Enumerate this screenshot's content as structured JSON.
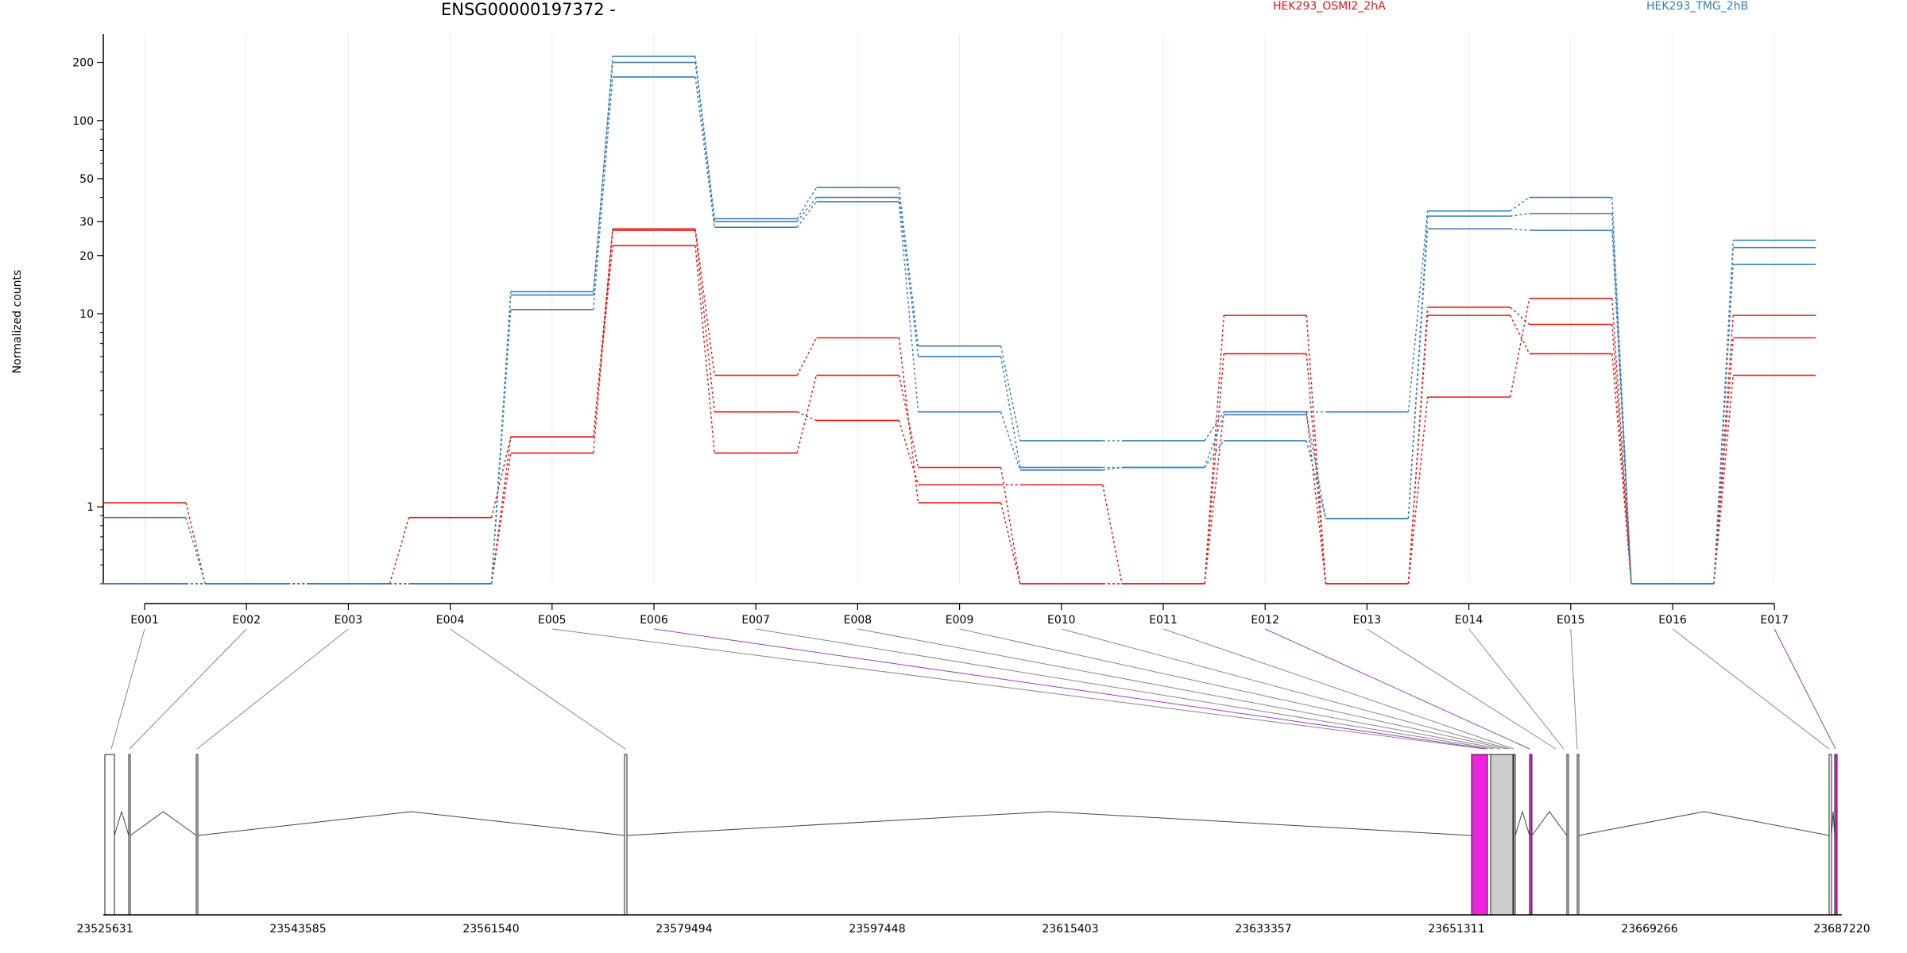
{
  "chart_data": {
    "type": "line",
    "title": "ENSG00000197372 -",
    "ylabel": "Normalized counts",
    "xlabel": "",
    "y_scale": "log",
    "ylim": [
      0.4,
      280
    ],
    "y_ticks": [
      1,
      10,
      20,
      30,
      50,
      100,
      200
    ],
    "categories": [
      "E001",
      "E002",
      "E003",
      "E004",
      "E005",
      "E006",
      "E007",
      "E008",
      "E009",
      "E010",
      "E011",
      "E012",
      "E013",
      "E014",
      "E015",
      "E016",
      "E017"
    ],
    "legend": [
      {
        "name": "HEK293_OSMI2_2hA",
        "color": "#e31a1c"
      },
      {
        "name": "HEK293_TMG_2hB",
        "color": "#377eb8"
      }
    ],
    "series": [
      {
        "group": "HEK293_OSMI2_2hA",
        "values": [
          1.05,
          0.4,
          0.4,
          0.4,
          1.9,
          27.5,
          4.8,
          7.5,
          1.05,
          0.4,
          0.4,
          9.8,
          0.4,
          9.8,
          6.2,
          0.4,
          7.5
        ]
      },
      {
        "group": "HEK293_OSMI2_2hA",
        "values": [
          0.4,
          0.4,
          0.4,
          0.88,
          2.3,
          27.0,
          3.1,
          2.8,
          1.3,
          1.3,
          0.4,
          6.2,
          0.4,
          10.8,
          8.8,
          0.4,
          9.8
        ]
      },
      {
        "group": "HEK293_OSMI2_2hA",
        "values": [
          0.4,
          0.4,
          0.4,
          0.4,
          2.3,
          22.5,
          1.9,
          4.8,
          1.6,
          0.4,
          0.4,
          3.1,
          0.4,
          3.7,
          12.0,
          0.4,
          4.8
        ]
      },
      {
        "group": "HEK293_TMG_2hB",
        "values": [
          0.88,
          0.4,
          0.4,
          0.4,
          12.5,
          215,
          31.0,
          45.0,
          6.8,
          2.2,
          2.2,
          3.1,
          3.1,
          34.0,
          40.0,
          0.4,
          24.0
        ]
      },
      {
        "group": "HEK293_TMG_2hB",
        "values": [
          0.4,
          0.4,
          0.4,
          0.4,
          13.0,
          200,
          30.0,
          40.0,
          6.0,
          1.6,
          1.6,
          3.0,
          0.87,
          32.0,
          33.0,
          0.4,
          22.0
        ]
      },
      {
        "group": "HEK293_TMG_2hB",
        "values": [
          0.4,
          0.4,
          0.4,
          0.4,
          10.5,
          168,
          28.0,
          38.0,
          3.1,
          1.55,
          1.6,
          2.2,
          0.87,
          27.5,
          27.0,
          0.4,
          18.0
        ]
      }
    ],
    "gene_model": {
      "genomic_ticks": [
        "23525631",
        "23543585",
        "23561540",
        "23579494",
        "23597448",
        "23615403",
        "23633357",
        "23651311",
        "23669266",
        "23687220"
      ],
      "exon_highlight_color": "#ee22dd",
      "neutral_exon_color": "#cccccc",
      "connector_highlight_color": "#a040c0"
    }
  }
}
